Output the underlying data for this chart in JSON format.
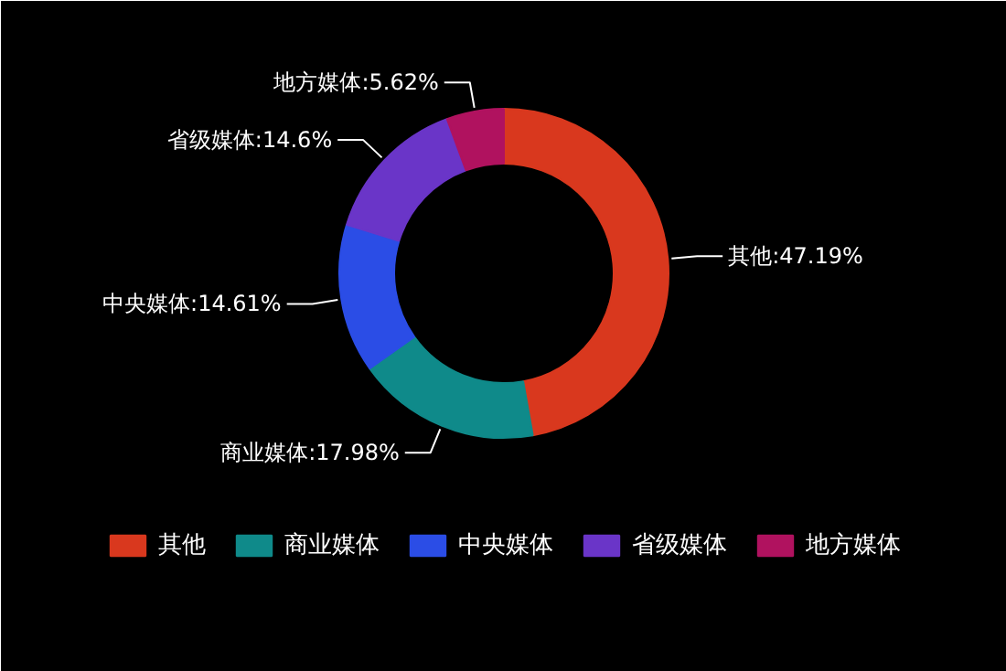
{
  "chart_data": {
    "type": "donut",
    "categories": [
      "其他",
      "商业媒体",
      "中央媒体",
      "省级媒体",
      "地方媒体"
    ],
    "values": [
      47.19,
      17.98,
      14.61,
      14.6,
      5.62
    ],
    "colors": [
      "#d9381e",
      "#0f8a8a",
      "#2b4de6",
      "#6a35c8",
      "#b0125f"
    ],
    "value_labels": [
      "其他:47.19%",
      "商业媒体:17.98%",
      "中央媒体:14.61%",
      "省级媒体:14.6%",
      "地方媒体:5.62%"
    ],
    "legend": "bottom"
  }
}
